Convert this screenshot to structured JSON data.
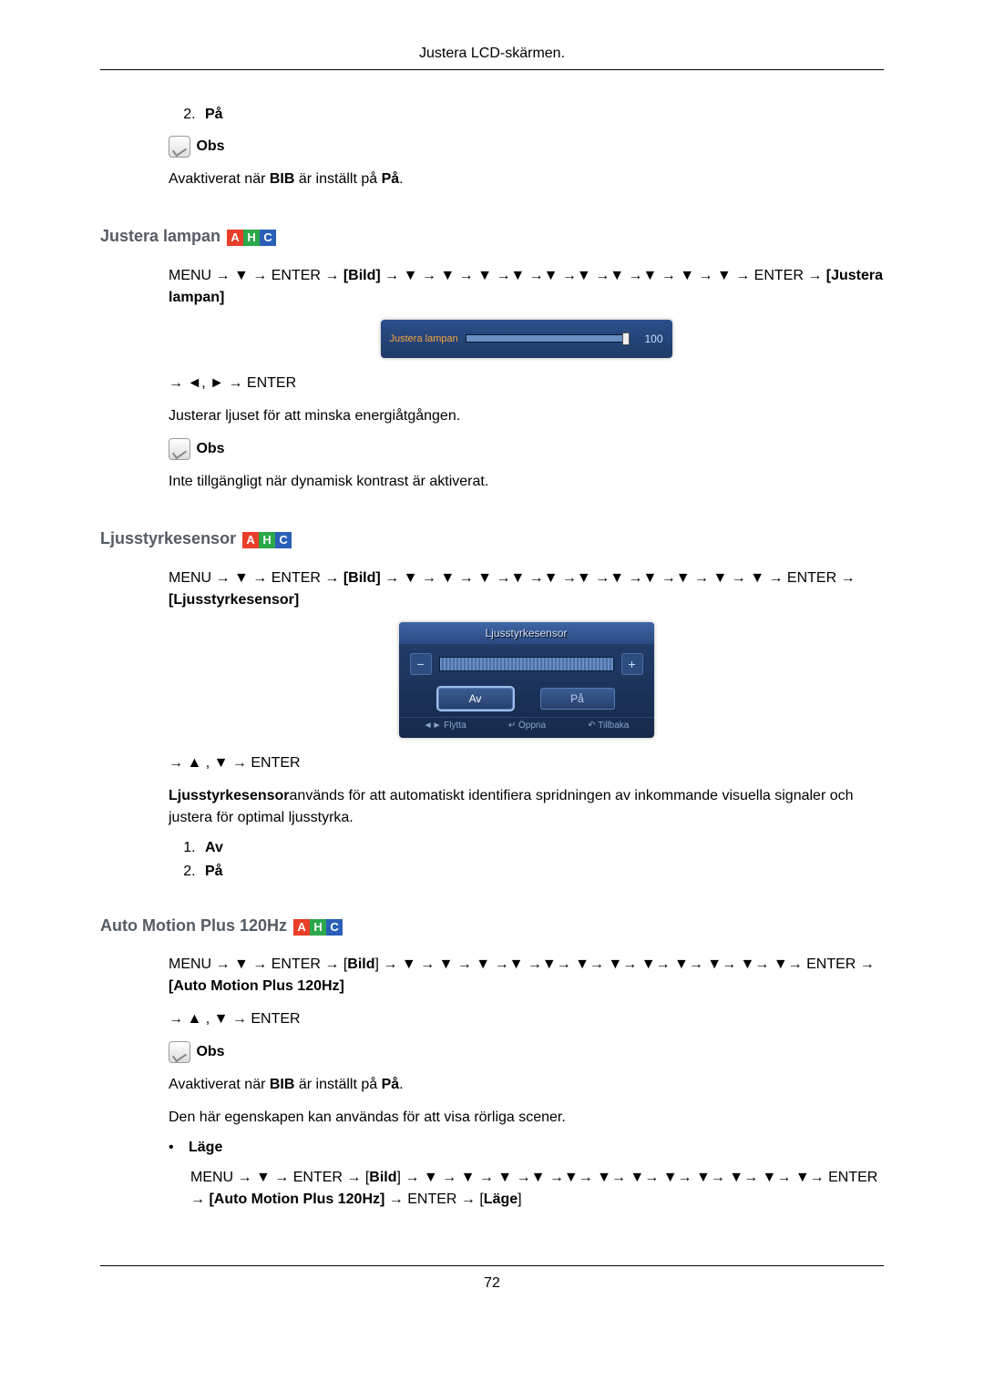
{
  "header": {
    "title": "Justera LCD-skärmen."
  },
  "page_number": "72",
  "top_item": {
    "num": "2.",
    "label": "På"
  },
  "note_label": "Obs",
  "note_top": {
    "prefix": "Avaktiverat när ",
    "bold1": "BIB",
    "mid": " är inställt på ",
    "bold2": "På",
    "suffix": "."
  },
  "lamp": {
    "title": "Justera lampan",
    "nav_prefix": "MENU → ▼ → ENTER → ",
    "nav_bold1": "[Bild]",
    "nav_mid": " → ▼ → ▼ → ▼ →▼ →▼ →▼ →▼ →▼ → ▼ → ▼ → ENTER → ",
    "nav_bold2": "[Justera lampan]",
    "osd_label": "Justera lampan",
    "osd_value": "100",
    "nav2": "→ ◄, ► → ENTER",
    "desc": "Justerar ljuset för att minska energiåtgången.",
    "note": "Inte tillgängligt när dynamisk kontrast är aktiverat.",
    "colors": {
      "bg_start": "#2a4f8a",
      "bg_end": "#1f3a66",
      "label": "#f5a43c"
    }
  },
  "sensor": {
    "title": "Ljusstyrkesensor",
    "nav_prefix": "MENU → ▼ → ENTER → ",
    "nav_bold1": "[Bild]",
    "nav_mid": " → ▼ → ▼ → ▼ →▼ →▼ →▼ →▼ →▼ →▼ → ▼ → ▼ → ENTER → ",
    "nav_bold2": "[Ljusstyrkesensor]",
    "osd_title": "Ljusstyrkesensor",
    "tab_off": "Av",
    "tab_on": "På",
    "footer_move": "◄► Flytta",
    "footer_open": "↵ Öppna",
    "footer_back": "↶ Tillbaka",
    "nav2": "→ ▲ , ▼ → ENTER",
    "desc_bold": "Ljusstyrkesensor",
    "desc_rest": "används för att automatiskt identifiera spridningen av inkommande visuella signaler och justera för optimal ljusstyrka.",
    "item1": "Av",
    "item2": "På"
  },
  "amp": {
    "title": "Auto Motion Plus 120Hz",
    "nav_prefix": "MENU → ▼ → ENTER → [",
    "nav_bold1": "Bild",
    "nav_mid": "] → ▼ → ▼ → ▼ →▼ →▼→ ▼→ ▼→ ▼→ ▼→ ▼→ ▼→ ▼→ ENTER → ",
    "nav_bold2": "[Auto Motion Plus 120Hz]",
    "nav2": "→ ▲ , ▼ → ENTER",
    "note_prefix": "Avaktiverat när ",
    "note_bold1": "BIB",
    "note_mid": " är inställt på ",
    "note_bold2": "På",
    "note_suffix": ".",
    "desc2": "Den här egenskapen kan användas för att visa rörliga scener.",
    "bullet_label": "Läge",
    "sub_prefix": "MENU → ▼ → ENTER → [",
    "sub_bold1": "Bild",
    "sub_mid1": "] → ▼ → ▼ → ▼ →▼ →▼→ ▼→ ▼→ ▼→ ▼→ ▼→ ▼→ ▼→ ENTER → ",
    "sub_bold2": "[Auto Motion Plus 120Hz]",
    "sub_mid2": "  → ENTER → [",
    "sub_bold3": "Läge",
    "sub_suffix": "]"
  }
}
